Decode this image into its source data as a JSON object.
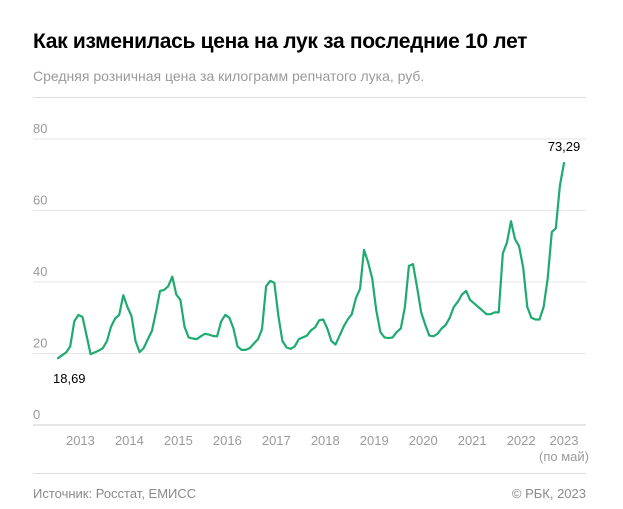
{
  "header": {
    "title": "Как изменилась цена на лук за последние 10 лет",
    "subtitle": "Средняя розничная цена за килограмм репчатого лука, руб."
  },
  "footer": {
    "source": "Источник: Росстат, ЕМИСС",
    "copyright": "© РБК, 2023"
  },
  "chart_data": {
    "type": "line",
    "title": "Как изменилась цена на лук за последние 10 лет",
    "subtitle": "Средняя розничная цена за килограмм репчатого лука, руб.",
    "xlabel": "",
    "ylabel": "",
    "ylim": [
      0,
      90
    ],
    "yticks": [
      0,
      20,
      40,
      60,
      80
    ],
    "grid": "horizontal",
    "color": "#1faa70",
    "x_start": "2013-01",
    "x_end": "2023-05",
    "xtick_labels": [
      "2013",
      "2014",
      "2015",
      "2016",
      "2017",
      "2018",
      "2019",
      "2020",
      "2021",
      "2022",
      "2023"
    ],
    "xtick_note": "(по май)",
    "annotations": [
      {
        "x": "2013-01",
        "label": "18,69"
      },
      {
        "x": "2023-05",
        "label": "73,29"
      }
    ],
    "series": [
      {
        "values": [
          18.69,
          19.5,
          20.3,
          22.0,
          29.0,
          30.8,
          30.2,
          25.0,
          19.8,
          20.3,
          20.8,
          21.5,
          23.5,
          27.5,
          29.8,
          30.8,
          36.3,
          33.0,
          30.5,
          23.5,
          20.4,
          21.5,
          24.0,
          26.3,
          31.5,
          37.5,
          37.8,
          38.8,
          41.5,
          36.5,
          35.0,
          27.5,
          24.5,
          24.2,
          24.0,
          24.8,
          25.5,
          25.3,
          24.9,
          24.8,
          29.0,
          30.8,
          30.0,
          27.0,
          22.0,
          21.0,
          21.0,
          21.5,
          22.8,
          24.0,
          26.8,
          38.8,
          40.3,
          39.8,
          30.5,
          23.5,
          21.7,
          21.3,
          22.0,
          24.0,
          24.5,
          25.0,
          26.5,
          27.3,
          29.3,
          29.5,
          27.0,
          23.5,
          22.5,
          25.0,
          27.5,
          29.5,
          31.0,
          35.5,
          38.0,
          49.0,
          45.5,
          41.0,
          32.0,
          26.0,
          24.5,
          24.3,
          24.5,
          26.0,
          27.0,
          33.0,
          44.5,
          45.0,
          38.5,
          31.5,
          28.0,
          25.0,
          24.8,
          25.5,
          27.0,
          28.0,
          30.0,
          33.0,
          34.5,
          36.5,
          37.5,
          35.0,
          34.0,
          33.0,
          32.0,
          31.0,
          31.0,
          31.5,
          31.5,
          48.0,
          51.0,
          57.0,
          52.0,
          50.0,
          44.0,
          33.0,
          30.0,
          29.5,
          29.5,
          33.0,
          41.0,
          54.0,
          55.0,
          67.0,
          73.29
        ]
      }
    ]
  }
}
